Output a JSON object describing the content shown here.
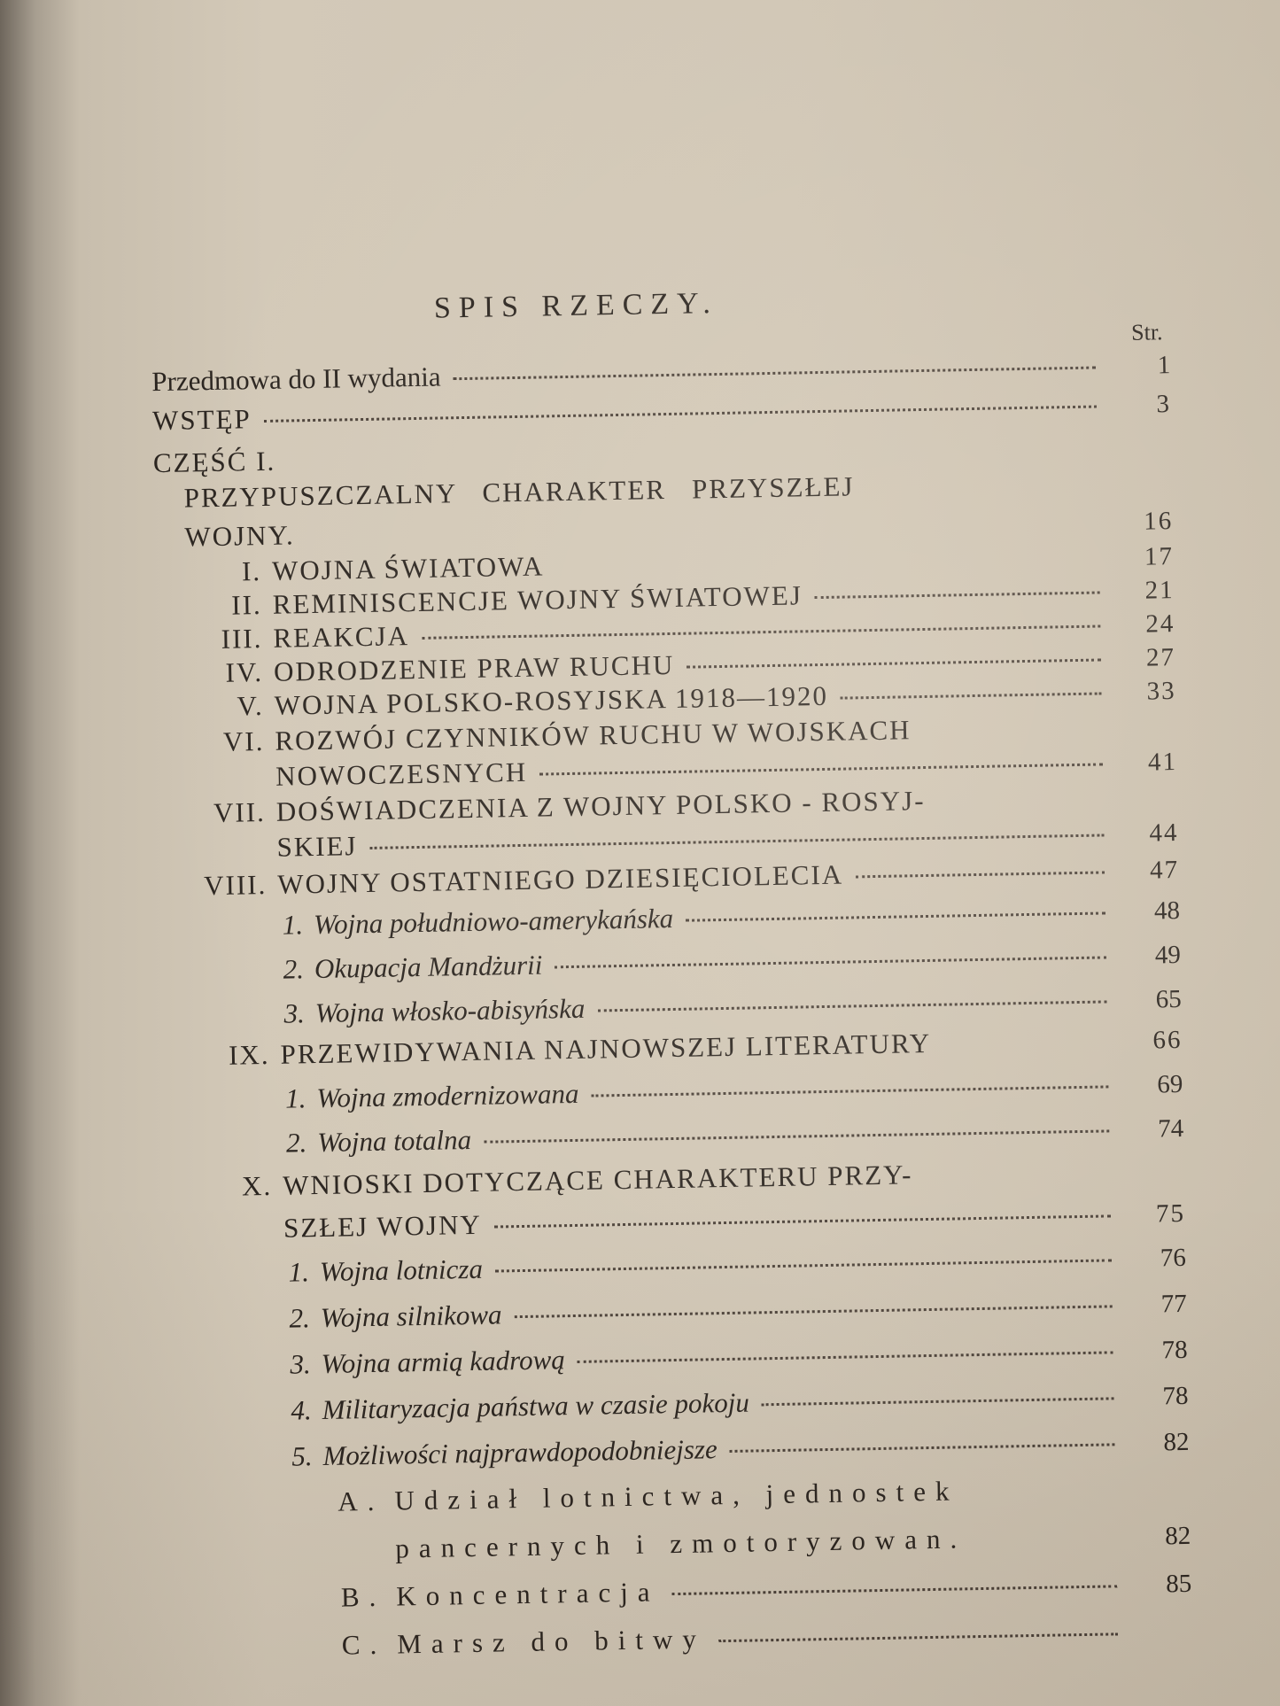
{
  "title": "SPIS RZECZY.",
  "page_header": "Str.",
  "entries": {
    "przedmowa": {
      "text": "Przedmowa do II wydania",
      "page": "1"
    },
    "wstep": {
      "text": "WSTĘP",
      "page": "3"
    },
    "czesc": {
      "label": "CZĘŚĆ I.",
      "line1": "PRZYPUSZCZALNY   CHARAKTER   PRZYSZŁEJ",
      "line2": "WOJNY.",
      "page": "16"
    },
    "c1": {
      "num": "I.",
      "text": "WOJNA ŚWIATOWA",
      "page": "17"
    },
    "c2": {
      "num": "II.",
      "text": "REMINISCENCJE WOJNY ŚWIATOWEJ",
      "page": "21"
    },
    "c3": {
      "num": "III.",
      "text": "REAKCJA",
      "page": "24"
    },
    "c4": {
      "num": "IV.",
      "text": "ODRODZENIE PRAW RUCHU",
      "page": "27"
    },
    "c5": {
      "num": "V.",
      "text": "WOJNA POLSKO-ROSYJSKA 1918—1920",
      "page": "33"
    },
    "c6": {
      "num": "VI.",
      "line1": "ROZWÓJ CZYNNIKÓW RUCHU W WOJSKACH",
      "line2": "NOWOCZESNYCH",
      "page": "41"
    },
    "c7": {
      "num": "VII.",
      "line1": "DOŚWIADCZENIA Z WOJNY POLSKO - ROSYJ-",
      "line2": "SKIEJ",
      "page": "44"
    },
    "c8": {
      "num": "VIII.",
      "text": "WOJNY OSTATNIEGO DZIESIĘCIOLECIA",
      "page": "47"
    },
    "c8_1": {
      "num": "1.",
      "text": "Wojna południowo-amerykańska",
      "page": "48"
    },
    "c8_2": {
      "num": "2.",
      "text": "Okupacja Mandżurii",
      "page": "49"
    },
    "c8_3": {
      "num": "3.",
      "text": "Wojna włosko-abisyńska",
      "page": "65"
    },
    "c9": {
      "num": "IX.",
      "text": "PRZEWIDYWANIA NAJNOWSZEJ LITERATURY",
      "page": "66"
    },
    "c9_1": {
      "num": "1.",
      "text": "Wojna zmodernizowana",
      "page": "69"
    },
    "c9_2": {
      "num": "2.",
      "text": "Wojna totalna",
      "page": "74"
    },
    "c10": {
      "num": "X.",
      "line1": "WNIOSKI DOTYCZĄCE CHARAKTERU PRZY-",
      "line2": "SZŁEJ WOJNY",
      "page": "75"
    },
    "c10_1": {
      "num": "1.",
      "text": "Wojna lotnicza",
      "page": "76"
    },
    "c10_2": {
      "num": "2.",
      "text": "Wojna silnikowa",
      "page": "77"
    },
    "c10_3": {
      "num": "3.",
      "text": "Wojna armią kadrową",
      "page": "78"
    },
    "c10_4": {
      "num": "4.",
      "text": "Militaryzacja państwa w czasie pokoju",
      "page": "78"
    },
    "c10_5": {
      "num": "5.",
      "text": "Możliwości najprawdopodobniejsze",
      "page": "82"
    },
    "a": {
      "num": "A.",
      "line1": "Udział lotnictwa, jednostek",
      "line2": "pancernych i zmotoryzowan.",
      "page": "82"
    },
    "b": {
      "num": "B.",
      "text": "Koncentracja",
      "page": "85"
    },
    "c": {
      "num": "C.",
      "text": "Marsz do bitwy"
    }
  }
}
